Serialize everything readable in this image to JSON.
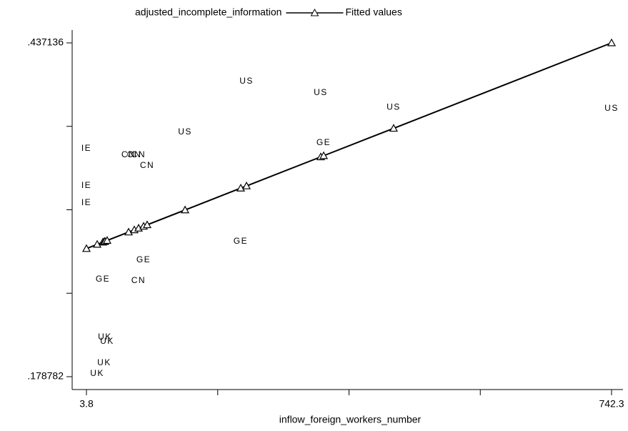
{
  "chart_data": {
    "type": "scatter",
    "legend_position": "top",
    "xlabel": "inflow_foreign_workers_number",
    "xlim": [
      3.8,
      742.3
    ],
    "xticks": [
      3.8,
      {
        "value": 742.3,
        "label": "742.3"
      }
    ],
    "xminor": [
      188.425,
      373.05,
      557.675
    ],
    "ylim": [
      0.178782,
      0.437136
    ],
    "yticks": [
      {
        "value": 0.178782,
        "label": ".178782"
      },
      {
        "value": 0.437136,
        "label": ".437136"
      }
    ],
    "yminor": [
      0.2433705,
      0.307959,
      0.3725475
    ],
    "series": [
      {
        "name": "adjusted_incomplete_information",
        "color": "#000000",
        "labels": [
          "US",
          "US",
          "US",
          "US",
          "US",
          "GE",
          "IE",
          "CN",
          "CN",
          "CN",
          "CN",
          "IE",
          "IE",
          "GE",
          "GE",
          "GE",
          "CN",
          "UK",
          "UK",
          "UK",
          "UK"
        ],
        "x": [
          228.9,
          333.3,
          435.8,
          742.3,
          142.5,
          337.4,
          3.8,
          63.1,
          71.1,
          77.1,
          89.2,
          3.8,
          3.8,
          220.8,
          84.2,
          26.9,
          77.1,
          29.9,
          32.9,
          28.9,
          18.9
        ],
        "values": [
          0.4073,
          0.3984,
          0.3873,
          0.3862,
          0.368,
          0.3597,
          0.3553,
          0.3503,
          0.3503,
          0.3503,
          0.342,
          0.3265,
          0.3133,
          0.2834,
          0.269,
          0.2541,
          0.253,
          0.2093,
          0.206,
          0.1894,
          0.1811
        ]
      },
      {
        "name": "Fitted values",
        "color": "#000000",
        "marker": "triangle",
        "x": [
          3.8,
          18.9,
          26.9,
          28.9,
          29.9,
          32.9,
          63.1,
          71.1,
          77.1,
          84.2,
          89.2,
          142.5,
          220.8,
          228.9,
          333.3,
          337.4,
          435.8,
          742.3
        ],
        "values": [
          0.2779,
          0.2812,
          0.2829,
          0.2833,
          0.2835,
          0.2842,
          0.2907,
          0.2924,
          0.2937,
          0.2952,
          0.2963,
          0.3078,
          0.3247,
          0.3264,
          0.3489,
          0.3498,
          0.371,
          0.437136
        ]
      }
    ]
  }
}
